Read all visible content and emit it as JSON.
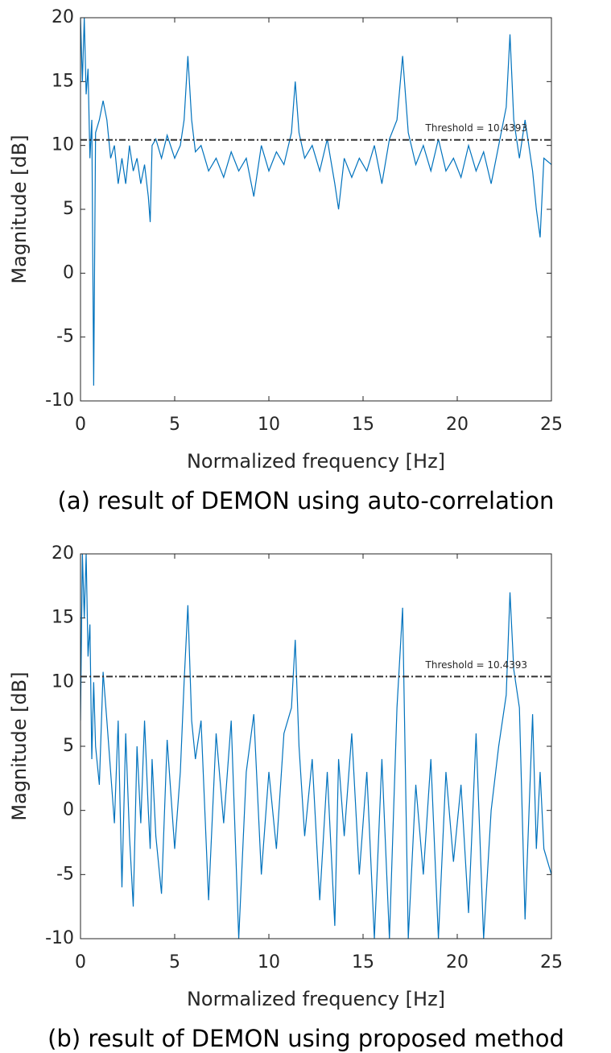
{
  "chart_data": [
    {
      "type": "line",
      "xlabel": "Normalized frequency [Hz]",
      "ylabel": "Magnitude [dB]",
      "caption": "(a) result of DEMON using auto-correlation",
      "threshold": {
        "label": "Threshold = 10.4393",
        "value": 10.4393,
        "color": "#333333"
      },
      "color": "#0072bd",
      "xlim": [
        0,
        25
      ],
      "xticks": [
        0,
        5,
        10,
        15,
        20,
        25
      ],
      "ylim": [
        -10,
        20
      ],
      "yticks": [
        -10,
        -5,
        0,
        5,
        10,
        15,
        20
      ],
      "x": [
        0,
        0.1,
        0.2,
        0.3,
        0.4,
        0.5,
        0.6,
        0.7,
        0.8,
        1.0,
        1.2,
        1.4,
        1.6,
        1.8,
        2.0,
        2.2,
        2.4,
        2.6,
        2.8,
        3.0,
        3.2,
        3.4,
        3.6,
        3.7,
        3.8,
        4.0,
        4.3,
        4.6,
        5.0,
        5.3,
        5.5,
        5.7,
        5.9,
        6.1,
        6.4,
        6.8,
        7.2,
        7.6,
        8.0,
        8.4,
        8.8,
        9.2,
        9.6,
        10.0,
        10.4,
        10.8,
        11.2,
        11.4,
        11.6,
        11.9,
        12.3,
        12.7,
        13.1,
        13.5,
        13.7,
        14.0,
        14.4,
        14.8,
        15.2,
        15.6,
        16.0,
        16.4,
        16.8,
        17.1,
        17.4,
        17.8,
        18.2,
        18.6,
        19.0,
        19.4,
        19.8,
        20.2,
        20.6,
        21.0,
        21.4,
        21.8,
        22.2,
        22.6,
        22.8,
        23.0,
        23.3,
        23.6,
        24.0,
        24.2,
        24.4,
        24.6,
        25.0
      ],
      "values": [
        20,
        15,
        20,
        14,
        16,
        9,
        12,
        -8.8,
        11,
        12,
        13.5,
        12,
        9,
        10,
        7,
        9,
        7,
        10,
        8,
        9,
        7,
        8.5,
        6,
        4,
        10,
        10.5,
        9,
        10.8,
        9,
        10,
        12,
        17,
        12,
        9.5,
        10,
        8,
        9,
        7.5,
        9.5,
        8,
        9,
        6,
        10,
        8,
        9.5,
        8.5,
        11,
        15,
        11,
        9,
        10,
        8,
        10.5,
        7,
        5,
        9,
        7.5,
        9,
        8,
        10,
        7,
        10.5,
        12,
        17,
        11,
        8.5,
        10,
        8,
        10.5,
        8,
        9,
        7.5,
        10,
        8,
        9.5,
        7,
        10,
        13,
        18.7,
        12,
        9,
        12,
        8,
        5,
        2.8,
        9,
        8.5
      ]
    },
    {
      "type": "line",
      "xlabel": "Normalized frequency [Hz]",
      "ylabel": "Magnitude [dB]",
      "caption": "(b) result of DEMON using proposed method",
      "threshold": {
        "label": "Threshold = 10.4393",
        "value": 10.4393,
        "color": "#333333"
      },
      "color": "#0072bd",
      "xlim": [
        0,
        25
      ],
      "xticks": [
        0,
        5,
        10,
        15,
        20,
        25
      ],
      "ylim": [
        -10,
        20
      ],
      "yticks": [
        -10,
        -5,
        0,
        5,
        10,
        15,
        20
      ],
      "x": [
        0,
        0.1,
        0.2,
        0.3,
        0.4,
        0.5,
        0.6,
        0.7,
        0.8,
        1.0,
        1.2,
        1.4,
        1.6,
        1.8,
        2.0,
        2.2,
        2.4,
        2.6,
        2.8,
        3.0,
        3.2,
        3.4,
        3.6,
        3.7,
        3.8,
        4.0,
        4.3,
        4.6,
        5.0,
        5.3,
        5.5,
        5.7,
        5.9,
        6.1,
        6.4,
        6.8,
        7.2,
        7.6,
        8.0,
        8.4,
        8.8,
        9.2,
        9.6,
        10.0,
        10.4,
        10.8,
        11.2,
        11.4,
        11.6,
        11.9,
        12.3,
        12.7,
        13.1,
        13.5,
        13.7,
        14.0,
        14.4,
        14.8,
        15.2,
        15.6,
        16.0,
        16.4,
        16.8,
        17.1,
        17.4,
        17.8,
        18.2,
        18.6,
        19.0,
        19.4,
        19.8,
        20.2,
        20.6,
        21.0,
        21.4,
        21.8,
        22.2,
        22.6,
        22.8,
        23.0,
        23.3,
        23.6,
        24.0,
        24.2,
        24.4,
        24.6,
        25.0
      ],
      "values": [
        7,
        20,
        15,
        20,
        12,
        14.5,
        4,
        10,
        5,
        2,
        10.8,
        7,
        3,
        -1,
        7,
        -6,
        6,
        -2,
        -7.5,
        5,
        -1,
        7,
        0,
        -3,
        4,
        -2,
        -6.5,
        5.5,
        -3,
        3,
        10,
        16,
        7,
        4,
        7,
        -7,
        6,
        -1,
        7,
        -10,
        3,
        7.5,
        -5,
        3,
        -3,
        6,
        8,
        13.3,
        5,
        -2,
        4,
        -7,
        3,
        -9,
        4,
        -2,
        6,
        -5,
        3,
        -10,
        4,
        -10,
        8,
        15.8,
        -10,
        2,
        -5,
        4,
        -10,
        3,
        -4,
        2,
        -8,
        6,
        -10,
        0,
        5,
        9,
        17,
        11,
        8,
        -8.5,
        7.5,
        -3,
        3,
        -3,
        -5
      ]
    }
  ]
}
